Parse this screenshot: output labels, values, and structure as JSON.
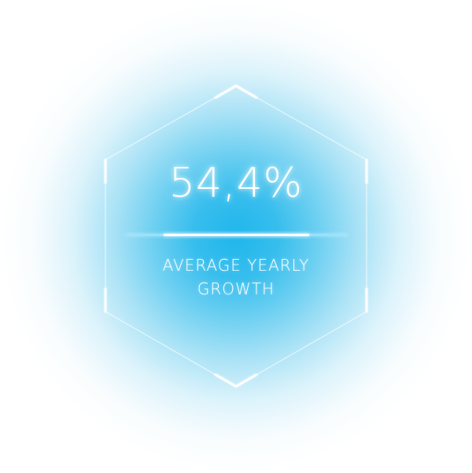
{
  "infographic": {
    "value": "54,4%",
    "label_line1": "AVERAGE YEARLY",
    "label_line2": "GROWTH"
  },
  "colors": {
    "glow": "#20b6ec",
    "frame": "#ffffff",
    "text": "#ffffff",
    "divider_outer": "#a0e4fa"
  },
  "icons": {
    "frame": "hexagon-frame-icon"
  }
}
